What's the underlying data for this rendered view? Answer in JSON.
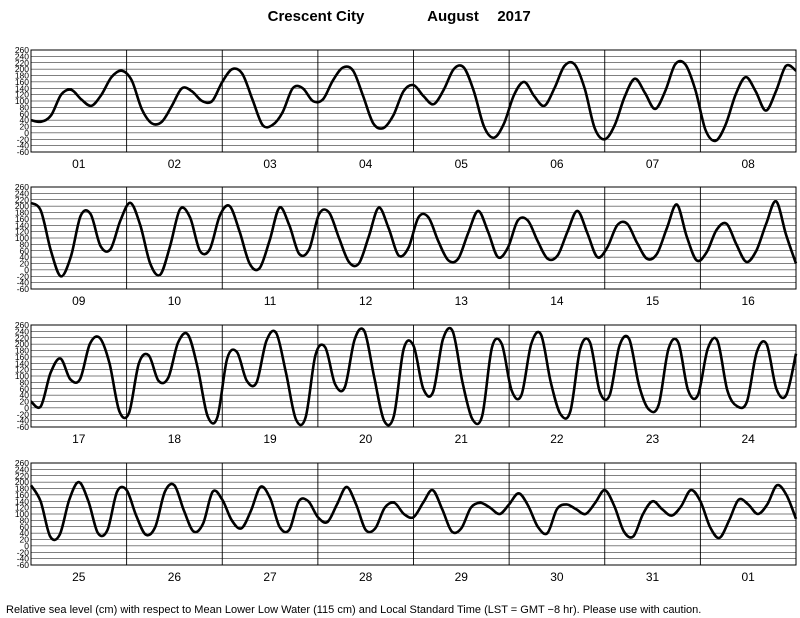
{
  "header": {
    "location": "Crescent City",
    "month": "August",
    "year": "2017"
  },
  "footer": {
    "text": "Relative sea level (cm) with respect to Mean Lower Low Water (115 cm) and Local Standard Time (LST = GMT −8 hr). Please use with caution."
  },
  "chart_data": [
    {
      "type": "line",
      "days": [
        "01",
        "02",
        "03",
        "04",
        "05",
        "06",
        "07",
        "08"
      ],
      "yticks": [
        260,
        240,
        220,
        200,
        180,
        160,
        140,
        120,
        100,
        80,
        60,
        40,
        20,
        0,
        -20,
        -40,
        -60
      ],
      "ylim": [
        -60,
        260
      ],
      "samples_per_day": 8,
      "series": [
        {
          "values": [
            40,
            35,
            55,
            120,
            135,
            105,
            85,
            120,
            175,
            195,
            165,
            75,
            30,
            35,
            85,
            140,
            130,
            100,
            100,
            160,
            200,
            185,
            105,
            25,
            25,
            65,
            140,
            140,
            100,
            105,
            165,
            205,
            195,
            115,
            30,
            15,
            55,
            130,
            150,
            115,
            90,
            135,
            200,
            205,
            130,
            20,
            -15,
            30,
            120,
            160,
            115,
            85,
            140,
            210,
            215,
            140,
            15,
            -20,
            25,
            115,
            170,
            125,
            75,
            130,
            215,
            215,
            135,
            10,
            -25,
            25,
            120,
            175,
            130,
            70,
            130,
            210,
            195
          ]
        }
      ],
      "grid": true
    },
    {
      "type": "line",
      "days": [
        "09",
        "10",
        "11",
        "12",
        "13",
        "14",
        "15",
        "16"
      ],
      "yticks": [
        260,
        240,
        220,
        200,
        180,
        160,
        140,
        120,
        100,
        80,
        60,
        40,
        20,
        0,
        -20,
        -40,
        -60
      ],
      "ylim": [
        -60,
        260
      ],
      "samples_per_day": 8,
      "series": [
        {
          "values": [
            210,
            185,
            60,
            -20,
            40,
            170,
            175,
            75,
            65,
            155,
            210,
            140,
            20,
            -15,
            75,
            190,
            165,
            60,
            65,
            170,
            200,
            120,
            20,
            5,
            90,
            195,
            140,
            50,
            65,
            175,
            180,
            100,
            25,
            20,
            105,
            195,
            130,
            45,
            70,
            165,
            165,
            90,
            30,
            35,
            115,
            185,
            120,
            40,
            70,
            155,
            155,
            90,
            35,
            45,
            120,
            185,
            115,
            40,
            70,
            140,
            145,
            85,
            35,
            50,
            130,
            205,
            105,
            30,
            55,
            125,
            145,
            80,
            25,
            60,
            145,
            215,
            110,
            20
          ]
        }
      ],
      "grid": true
    },
    {
      "type": "line",
      "days": [
        "17",
        "18",
        "19",
        "20",
        "21",
        "22",
        "23",
        "24"
      ],
      "yticks": [
        260,
        240,
        220,
        200,
        180,
        160,
        140,
        120,
        100,
        80,
        60,
        40,
        20,
        0,
        -20,
        -40,
        -60
      ],
      "ylim": [
        -60,
        260
      ],
      "samples_per_day": 8,
      "series": [
        {
          "values": [
            20,
            5,
            110,
            155,
            90,
            90,
            200,
            220,
            140,
            -10,
            -15,
            140,
            165,
            85,
            95,
            205,
            230,
            125,
            -25,
            -30,
            155,
            175,
            85,
            80,
            210,
            235,
            110,
            -35,
            -30,
            165,
            190,
            75,
            65,
            215,
            240,
            95,
            -40,
            -25,
            185,
            195,
            60,
            50,
            215,
            240,
            80,
            -35,
            -25,
            190,
            200,
            55,
            40,
            200,
            230,
            80,
            -20,
            -10,
            185,
            205,
            50,
            40,
            195,
            215,
            70,
            -5,
            10,
            185,
            205,
            55,
            40,
            185,
            210,
            55,
            5,
            20,
            175,
            200,
            60,
            40,
            170
          ]
        }
      ],
      "grid": true
    },
    {
      "type": "line",
      "days": [
        "25",
        "26",
        "27",
        "28",
        "29",
        "30",
        "31",
        "01"
      ],
      "yticks": [
        260,
        240,
        220,
        200,
        180,
        160,
        140,
        120,
        100,
        80,
        60,
        40,
        20,
        0,
        -20,
        -40,
        -60
      ],
      "ylim": [
        -60,
        260
      ],
      "samples_per_day": 8,
      "series": [
        {
          "values": [
            190,
            140,
            30,
            35,
            145,
            200,
            140,
            40,
            50,
            170,
            175,
            95,
            35,
            60,
            170,
            190,
            110,
            45,
            70,
            170,
            145,
            80,
            55,
            110,
            185,
            150,
            60,
            50,
            140,
            140,
            90,
            75,
            130,
            185,
            130,
            50,
            55,
            120,
            135,
            100,
            90,
            135,
            175,
            115,
            45,
            55,
            120,
            135,
            120,
            100,
            130,
            165,
            125,
            60,
            40,
            115,
            130,
            115,
            100,
            135,
            175,
            125,
            45,
            30,
            100,
            140,
            115,
            95,
            125,
            175,
            140,
            60,
            25,
            80,
            145,
            130,
            100,
            130,
            190,
            160,
            85
          ]
        }
      ],
      "grid": true
    }
  ]
}
